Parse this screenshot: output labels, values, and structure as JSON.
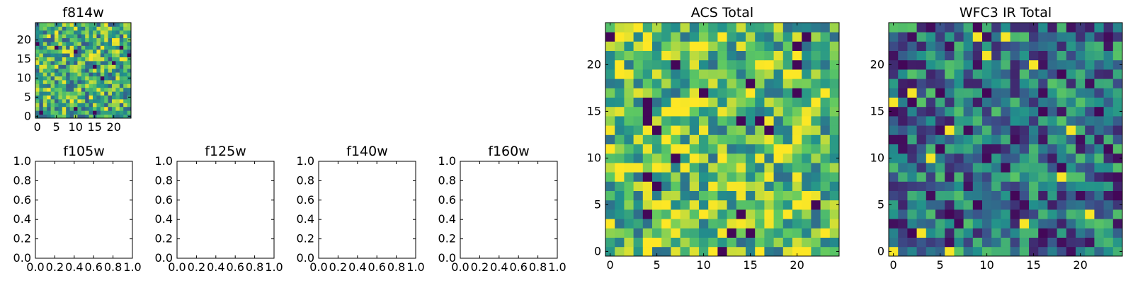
{
  "chart_data": [
    {
      "id": "f814w",
      "type": "heatmap",
      "title": "f814w",
      "xlim": [
        -0.5,
        24.5
      ],
      "ylim": [
        -0.5,
        24.5
      ],
      "xticks": [
        0,
        5,
        10,
        15,
        20
      ],
      "yticks": [
        0,
        5,
        10,
        15,
        20
      ],
      "grid_size": [
        25,
        25
      ],
      "colormap": "viridis",
      "seed": 11,
      "bias": 0.62
    },
    {
      "id": "f105w",
      "type": "heatmap",
      "title": "f105w",
      "xlim": [
        0,
        1
      ],
      "ylim": [
        0,
        1
      ],
      "xticks": [
        "0.0",
        "0.2",
        "0.4",
        "0.6",
        "0.8",
        "1.0"
      ],
      "yticks": [
        "0.0",
        "0.2",
        "0.4",
        "0.6",
        "0.8",
        "1.0"
      ],
      "empty": true
    },
    {
      "id": "f125w",
      "type": "heatmap",
      "title": "f125w",
      "xlim": [
        0,
        1
      ],
      "ylim": [
        0,
        1
      ],
      "xticks": [
        "0.0",
        "0.2",
        "0.4",
        "0.6",
        "0.8",
        "1.0"
      ],
      "yticks": [
        "0.0",
        "0.2",
        "0.4",
        "0.6",
        "0.8",
        "1.0"
      ],
      "empty": true
    },
    {
      "id": "f140w",
      "type": "heatmap",
      "title": "f140w",
      "xlim": [
        0,
        1
      ],
      "ylim": [
        0,
        1
      ],
      "xticks": [
        "0.0",
        "0.2",
        "0.4",
        "0.6",
        "0.8",
        "1.0"
      ],
      "yticks": [
        "0.0",
        "0.2",
        "0.4",
        "0.6",
        "0.8",
        "1.0"
      ],
      "empty": true
    },
    {
      "id": "f160w",
      "type": "heatmap",
      "title": "f160w",
      "xlim": [
        0,
        1
      ],
      "ylim": [
        0,
        1
      ],
      "xticks": [
        "0.0",
        "0.2",
        "0.4",
        "0.6",
        "0.8",
        "1.0"
      ],
      "yticks": [
        "0.0",
        "0.2",
        "0.4",
        "0.6",
        "0.8",
        "1.0"
      ],
      "empty": true
    },
    {
      "id": "acs_total",
      "type": "heatmap",
      "title": "ACS Total",
      "xlim": [
        -0.5,
        24.5
      ],
      "ylim": [
        -0.5,
        24.5
      ],
      "xticks": [
        0,
        5,
        10,
        15,
        20
      ],
      "yticks": [
        0,
        5,
        10,
        15,
        20
      ],
      "grid_size": [
        25,
        25
      ],
      "colormap": "viridis",
      "seed": 29,
      "bias": 0.7
    },
    {
      "id": "wfc3_ir_total",
      "type": "heatmap",
      "title": "WFC3 IR Total",
      "xlim": [
        -0.5,
        24.5
      ],
      "ylim": [
        -0.5,
        24.5
      ],
      "xticks": [
        0,
        5,
        10,
        15,
        20
      ],
      "yticks": [
        0,
        5,
        10,
        15,
        20
      ],
      "grid_size": [
        25,
        25
      ],
      "colormap": "viridis",
      "seed": 47,
      "bias": 0.38
    }
  ],
  "colors": {
    "viridis": [
      "#440154",
      "#3b528b",
      "#21918c",
      "#5ec962",
      "#fde725"
    ]
  }
}
